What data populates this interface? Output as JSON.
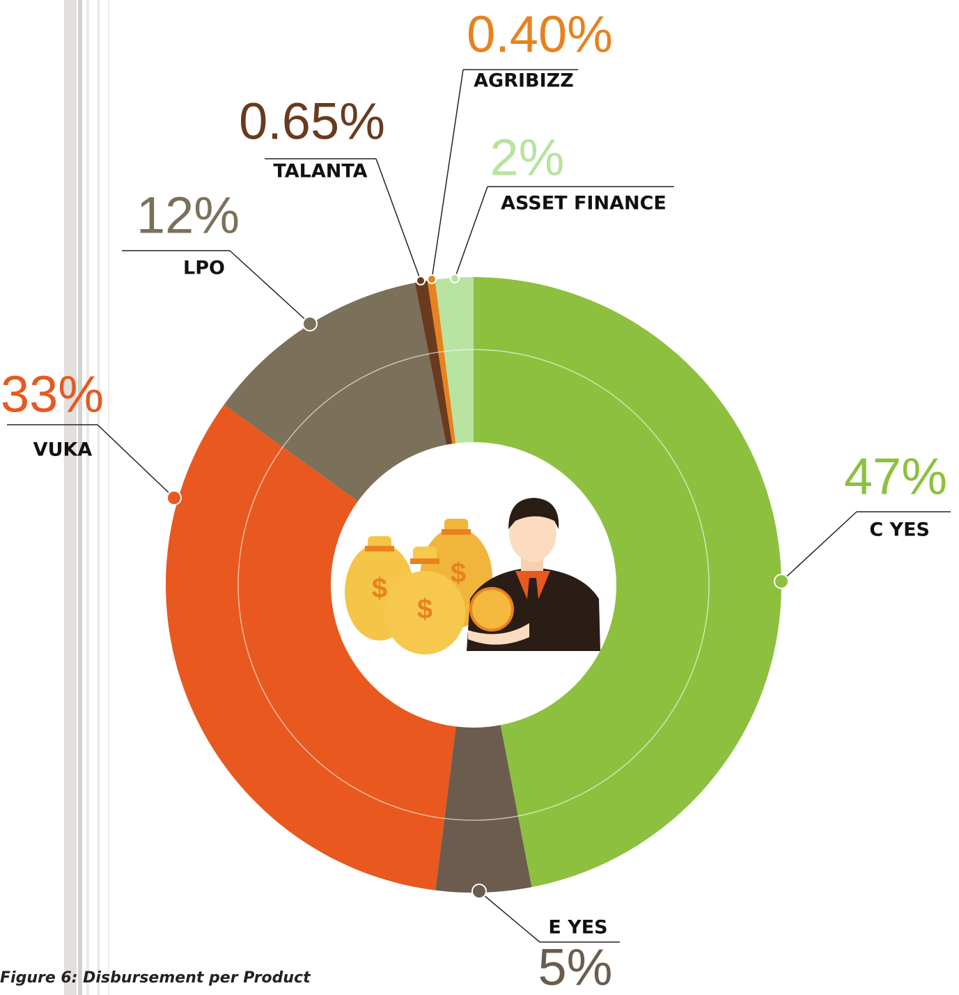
{
  "chart_data": {
    "type": "donut",
    "caption": "Figure 6: Disbursement per Product",
    "categories": [
      "C YES",
      "E YES",
      "VUKA",
      "LPO",
      "TALANTA",
      "AGRIBIZZ",
      "ASSET FINANCE"
    ],
    "values": [
      47,
      5,
      33,
      12,
      0.65,
      0.4,
      2
    ],
    "value_labels": [
      "47%",
      "5%",
      "33%",
      "12%",
      "0.65%",
      "0.40%",
      "2%"
    ],
    "colors": [
      "#8dc03f",
      "#6b5c4e",
      "#e8581f",
      "#7b7059",
      "#6a3a1e",
      "#e8821e",
      "#b8e3a0"
    ]
  }
}
